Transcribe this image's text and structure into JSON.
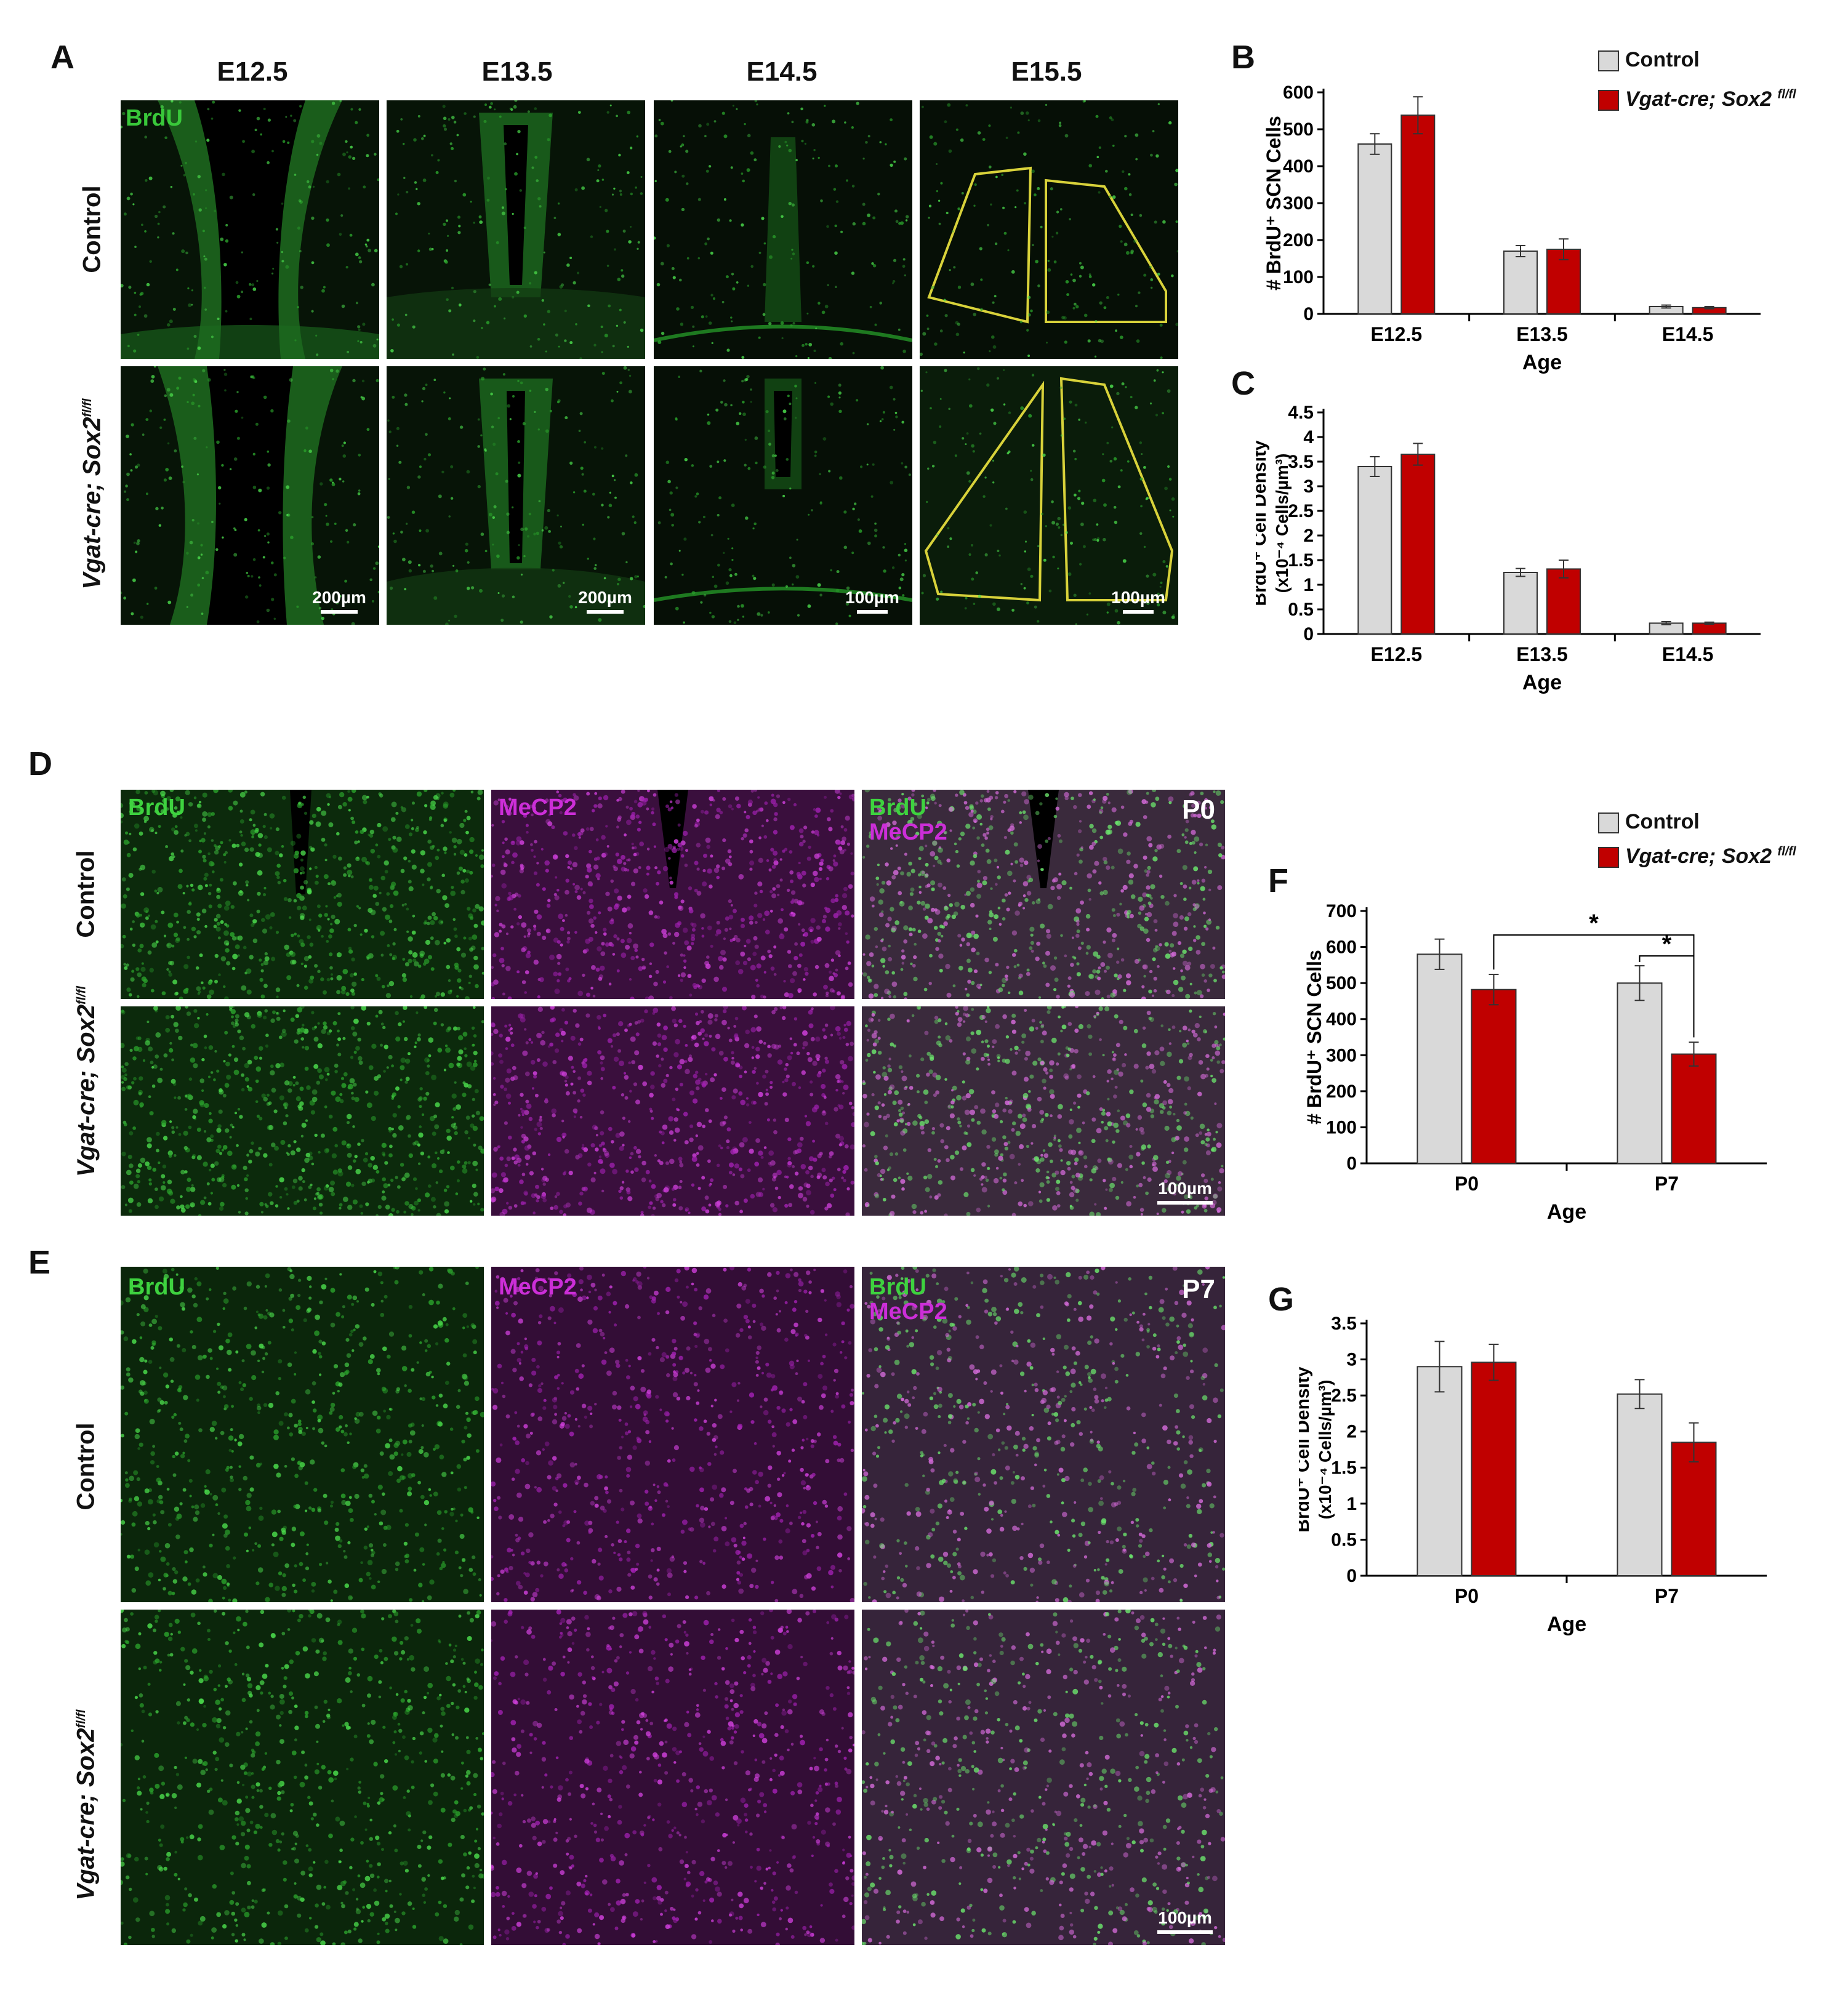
{
  "panel_letters": {
    "a": "A",
    "b": "B",
    "c": "C",
    "d": "D",
    "e": "E",
    "f": "F",
    "g": "G"
  },
  "panel_a": {
    "columns": [
      "E12.5",
      "E13.5",
      "E14.5",
      "E15.5"
    ],
    "rows": [
      "Control",
      "Vgat-cre; Sox2"
    ],
    "row_superscript": "fl/fl",
    "stain": "BrdU",
    "scale_bars": [
      "200µm",
      "200µm",
      "100µm",
      "100µm"
    ],
    "colors": {
      "brdu": "#39c83a",
      "outline": "#d8d23a"
    }
  },
  "panel_d": {
    "rows": [
      "Control",
      "Vgat-cre; Sox2"
    ],
    "row_superscript": "fl/fl",
    "stains": [
      "BrdU",
      "MeCP2"
    ],
    "age_tag": "P0",
    "scale_bar": "100µm",
    "colors": {
      "brdu": "#3ed23f",
      "mecp2": "#cc2ed8"
    }
  },
  "panel_e": {
    "rows": [
      "Control",
      "Vgat-cre; Sox2"
    ],
    "row_superscript": "fl/fl",
    "stains": [
      "BrdU",
      "MeCP2"
    ],
    "age_tag": "P7",
    "scale_bar": "100µm"
  },
  "legend": {
    "control": "Control",
    "mutant": "Vgat-cre; Sox2",
    "mutant_sup": "fl/fl",
    "colors": {
      "control": "#d9d9d9",
      "mutant": "#c00000"
    }
  },
  "chart_data": [
    {
      "id": "B",
      "type": "bar",
      "categories": [
        "E12.5",
        "E13.5",
        "E14.5"
      ],
      "series": [
        {
          "name": "Control",
          "values": [
            460,
            170,
            20
          ],
          "errors": [
            28,
            15,
            4
          ]
        },
        {
          "name": "Vgat-cre; Sox2 fl/fl",
          "values": [
            538,
            175,
            17
          ],
          "errors": [
            50,
            28,
            3
          ]
        }
      ],
      "xlabel": "Age",
      "ylabel": "# BrdU⁺ SCN Cells",
      "ylim": [
        0,
        600
      ],
      "yticks": [
        "0",
        "100",
        "200",
        "300",
        "400",
        "500",
        "600"
      ]
    },
    {
      "id": "C",
      "type": "bar",
      "categories": [
        "E12.5",
        "E13.5",
        "E14.5"
      ],
      "series": [
        {
          "name": "Control",
          "values": [
            3.4,
            1.25,
            0.22
          ],
          "errors": [
            0.2,
            0.08,
            0.03
          ]
        },
        {
          "name": "Vgat-cre; Sox2 fl/fl",
          "values": [
            3.65,
            1.32,
            0.22
          ],
          "errors": [
            0.22,
            0.18,
            0.02
          ]
        }
      ],
      "xlabel": "Age",
      "ylabel_line1": "BrdU⁺ Cell Density",
      "ylabel_line2": "(x10⁻⁴ Cells/µm³)",
      "ylim": [
        0,
        4.5
      ],
      "yticks": [
        "0",
        "0.5",
        "1",
        "1.5",
        "2",
        "2.5",
        "3",
        "3.5",
        "4",
        "4.5"
      ]
    },
    {
      "id": "F",
      "type": "bar",
      "categories": [
        "P0",
        "P7"
      ],
      "series": [
        {
          "name": "Control",
          "values": [
            580,
            500
          ],
          "errors": [
            42,
            48
          ]
        },
        {
          "name": "Vgat-cre; Sox2 fl/fl",
          "values": [
            482,
            303
          ],
          "errors": [
            42,
            33
          ]
        }
      ],
      "xlabel": "Age",
      "ylabel": "# BrdU⁺ SCN Cells",
      "ylim": [
        0,
        700
      ],
      "yticks": [
        "0",
        "100",
        "200",
        "300",
        "400",
        "500",
        "600",
        "700"
      ],
      "significance": [
        "*",
        "*"
      ]
    },
    {
      "id": "G",
      "type": "bar",
      "categories": [
        "P0",
        "P7"
      ],
      "series": [
        {
          "name": "Control",
          "values": [
            2.9,
            2.52
          ],
          "errors": [
            0.35,
            0.2
          ]
        },
        {
          "name": "Vgat-cre; Sox2 fl/fl",
          "values": [
            2.96,
            1.85
          ],
          "errors": [
            0.25,
            0.27
          ]
        }
      ],
      "xlabel": "Age",
      "ylabel_line1": "BrdU⁺ Cell Density",
      "ylabel_line2": "(x10⁻⁴ Cells/µm³)",
      "ylim": [
        0,
        3.5
      ],
      "yticks": [
        "0",
        "0.5",
        "1",
        "1.5",
        "2",
        "2.5",
        "3",
        "3.5"
      ]
    }
  ]
}
